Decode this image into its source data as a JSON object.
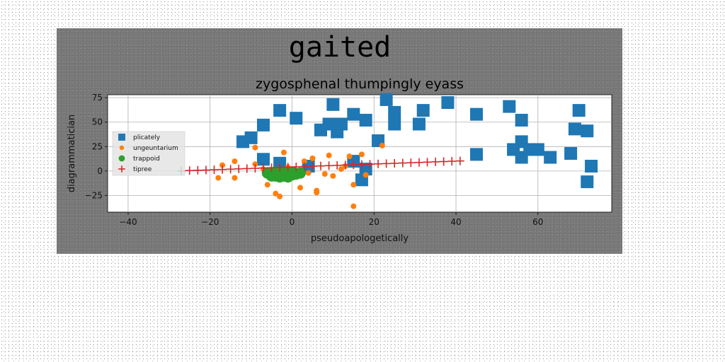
{
  "chart_data": {
    "type": "scatter",
    "suptitle": "gaited",
    "title": "zygosphenal thumpingly eyass",
    "xlabel": "pseudoapologetically",
    "ylabel": "diagrammatician",
    "xlim": [
      -45,
      78
    ],
    "ylim": [
      -42,
      78
    ],
    "xticks": [
      -40,
      -20,
      0,
      20,
      40,
      60
    ],
    "yticks": [
      -25,
      0,
      25,
      50,
      75
    ],
    "grid": true,
    "legend_position": "center-left",
    "series": [
      {
        "name": "plicately",
        "marker": "square",
        "color": "#1f77b4",
        "points": [
          [
            -12,
            30
          ],
          [
            -10,
            34
          ],
          [
            -7,
            47
          ],
          [
            -7,
            12
          ],
          [
            -3,
            62
          ],
          [
            -3,
            8
          ],
          [
            1,
            54
          ],
          [
            4,
            5
          ],
          [
            7,
            42
          ],
          [
            9,
            48
          ],
          [
            10,
            68
          ],
          [
            11,
            40
          ],
          [
            12,
            48
          ],
          [
            15,
            58
          ],
          [
            15,
            10
          ],
          [
            17,
            -9
          ],
          [
            18,
            52
          ],
          [
            18,
            2
          ],
          [
            21,
            31
          ],
          [
            23,
            73
          ],
          [
            25,
            60
          ],
          [
            25,
            48
          ],
          [
            31,
            48
          ],
          [
            32,
            62
          ],
          [
            38,
            70
          ],
          [
            45,
            58
          ],
          [
            45,
            17
          ],
          [
            53,
            66
          ],
          [
            54,
            22
          ],
          [
            56,
            52
          ],
          [
            56,
            30
          ],
          [
            56,
            14
          ],
          [
            58,
            22
          ],
          [
            60,
            22
          ],
          [
            63,
            14
          ],
          [
            68,
            18
          ],
          [
            69,
            43
          ],
          [
            70,
            62
          ],
          [
            72,
            41
          ],
          [
            72,
            -11
          ],
          [
            73,
            5
          ]
        ]
      },
      {
        "name": "ungeuntarium",
        "marker": "circle",
        "color": "#ff7f0e",
        "points": [
          [
            -18,
            -7
          ],
          [
            -17,
            6
          ],
          [
            -14,
            -7
          ],
          [
            -14,
            10
          ],
          [
            -9,
            7
          ],
          [
            -9,
            24
          ],
          [
            -7,
            2
          ],
          [
            -6,
            -5
          ],
          [
            -6,
            -14
          ],
          [
            -4,
            -23
          ],
          [
            -3,
            -26
          ],
          [
            -2,
            19
          ],
          [
            -1,
            4
          ],
          [
            1,
            -3
          ],
          [
            2,
            -17
          ],
          [
            3,
            10
          ],
          [
            4,
            -2
          ],
          [
            5,
            13
          ],
          [
            6,
            -22
          ],
          [
            6,
            -20
          ],
          [
            8,
            -3
          ],
          [
            9,
            16
          ],
          [
            10,
            -5
          ],
          [
            12,
            2
          ],
          [
            13,
            5
          ],
          [
            14,
            15
          ],
          [
            15,
            -36
          ],
          [
            15,
            -14
          ],
          [
            17,
            17
          ],
          [
            22,
            26
          ],
          [
            18,
            -4
          ]
        ]
      },
      {
        "name": "trappoid",
        "marker": "circle-large",
        "color": "#2ca02c",
        "points": [
          [
            -5,
            -3
          ],
          [
            -4,
            -5
          ],
          [
            -3,
            -6
          ],
          [
            -2,
            -5
          ],
          [
            -1,
            -6
          ],
          [
            0,
            -4
          ],
          [
            -6,
            -2
          ],
          [
            -4,
            -1
          ],
          [
            -2,
            -1
          ],
          [
            0,
            -1
          ],
          [
            1,
            -3
          ],
          [
            -3,
            -3
          ],
          [
            -1,
            -2
          ],
          [
            2,
            -2
          ],
          [
            -5,
            -5
          ],
          [
            -2,
            -3
          ]
        ]
      },
      {
        "name": "tipree",
        "marker": "plus",
        "color": "#d62728",
        "points": [
          [
            -27,
            0
          ],
          [
            -25,
            0.5
          ],
          [
            -23,
            0.8
          ],
          [
            -21,
            1
          ],
          [
            -19,
            1.3
          ],
          [
            -17,
            1.6
          ],
          [
            -15,
            1.9
          ],
          [
            -13,
            2.2
          ],
          [
            -11,
            2.5
          ],
          [
            -9,
            2.8
          ],
          [
            -7,
            3.1
          ],
          [
            -5,
            3.4
          ],
          [
            -3,
            3.7
          ],
          [
            -1,
            4
          ],
          [
            1,
            4.3
          ],
          [
            3,
            4.6
          ],
          [
            5,
            4.9
          ],
          [
            7,
            5.2
          ],
          [
            9,
            5.5
          ],
          [
            11,
            5.8
          ],
          [
            13,
            6.1
          ],
          [
            15,
            6.4
          ],
          [
            17,
            6.7
          ],
          [
            19,
            7
          ],
          [
            21,
            7.3
          ],
          [
            23,
            7.6
          ],
          [
            25,
            7.9
          ],
          [
            27,
            8.2
          ],
          [
            29,
            8.5
          ],
          [
            31,
            8.8
          ],
          [
            33,
            9.1
          ],
          [
            35,
            9.4
          ],
          [
            37,
            9.7
          ],
          [
            39,
            10
          ],
          [
            41,
            10.3
          ]
        ]
      }
    ]
  }
}
